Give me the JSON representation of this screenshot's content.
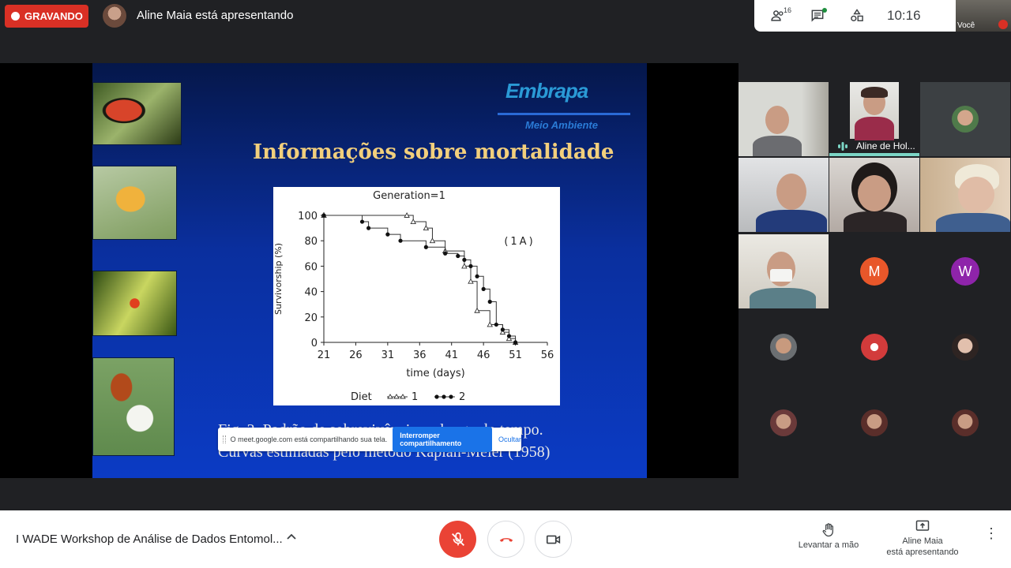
{
  "top": {
    "recording_label": "GRAVANDO",
    "presenter_status": "Aline Maia está apresentando",
    "participant_count": "16",
    "time": "10:16",
    "self_label": "Você"
  },
  "slide": {
    "logo": "Embrapa",
    "logo_sub": "Meio Ambiente",
    "title": "Informações sobre  mortalidade",
    "caption_line1": "Fig. 2. Padrão de sobrevivência ao longo do tempo.",
    "caption_line2": "Curvas estimadas pelo método Kaplan-Meier (1958)",
    "figure_tag": "(1A)"
  },
  "chart_data": {
    "type": "line",
    "title": "Generation=1",
    "xlabel": "time (days)",
    "ylabel": "Survivorship (%)",
    "xlim": [
      21,
      56
    ],
    "ylim": [
      0,
      100
    ],
    "xticks": [
      21,
      26,
      31,
      36,
      41,
      46,
      51,
      56
    ],
    "yticks": [
      0,
      20,
      40,
      60,
      80,
      100
    ],
    "legend": {
      "title": "Diet",
      "position": "bottom"
    },
    "series": [
      {
        "name": "1",
        "marker": "triangle",
        "x": [
          21,
          34,
          35,
          37,
          38,
          40,
          43,
          44,
          45,
          47,
          49,
          50,
          51
        ],
        "values": [
          100,
          100,
          95,
          90,
          80,
          72,
          60,
          48,
          25,
          14,
          8,
          3,
          0
        ]
      },
      {
        "name": "2",
        "marker": "circle",
        "x": [
          21,
          27,
          28,
          31,
          33,
          37,
          40,
          42,
          43,
          44,
          45,
          46,
          47,
          48,
          49,
          50,
          51
        ],
        "values": [
          100,
          95,
          90,
          85,
          80,
          75,
          70,
          68,
          65,
          60,
          52,
          42,
          32,
          14,
          10,
          5,
          0
        ]
      }
    ]
  },
  "share_bar": {
    "message": "O meet.google.com está compartilhando sua tela.",
    "stop_label": "Interromper compartilhamento",
    "hide_label": "Ocultar"
  },
  "participants": {
    "speaker_label": "Aline de Hol...",
    "letter_m": "M",
    "letter_w": "W",
    "colors": {
      "m": "#e8572a",
      "w": "#8e24aa"
    }
  },
  "bottom": {
    "meeting_title": "I WADE Workshop de Análise de Dados Entomol...",
    "raise_hand": "Levantar a mão",
    "presenting_line1": "Aline Maia",
    "presenting_line2": "está apresentando"
  },
  "colors": {
    "recording": "#d93025",
    "accent": "#1a73e8",
    "end_call": "#ea4335"
  }
}
